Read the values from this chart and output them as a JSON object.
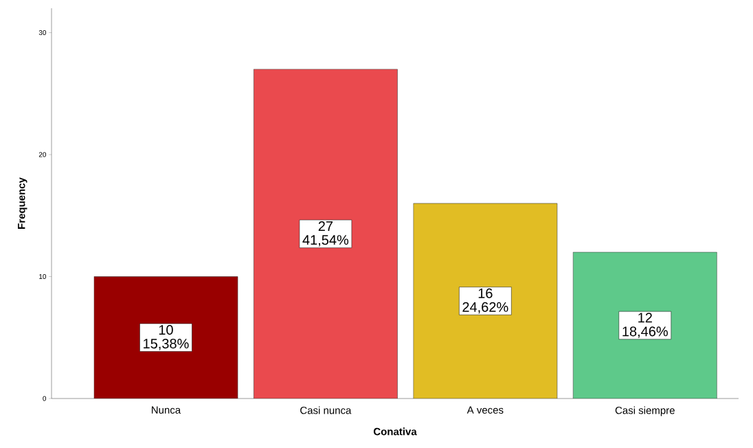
{
  "chart_data": {
    "type": "bar",
    "xlabel": "Conativa",
    "ylabel": "Frequency",
    "categories": [
      "Nunca",
      "Casi nunca",
      "A veces",
      "Casi siempre"
    ],
    "values": [
      10,
      27,
      16,
      12
    ],
    "colors": [
      "#990000",
      "#ea4a4e",
      "#e1bd24",
      "#5ec98a"
    ],
    "value_labels": [
      "10 15,38%",
      "27 41,54%",
      "16 24,62%",
      "12 18,46%"
    ],
    "ylim": [
      0,
      32
    ],
    "yticks": [
      0,
      10,
      20,
      30
    ],
    "grid": false
  }
}
